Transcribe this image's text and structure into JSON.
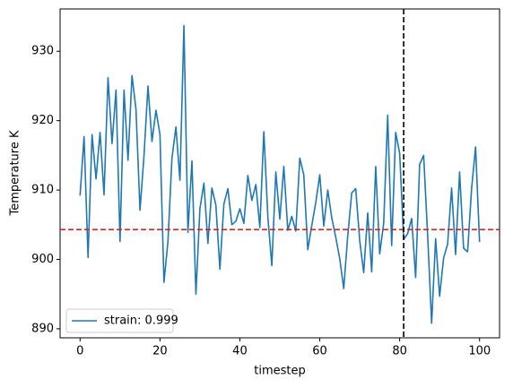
{
  "chart_data": {
    "type": "line",
    "x_label": "timestep",
    "y_label": "Temperature K",
    "x": [
      0,
      1,
      2,
      3,
      4,
      5,
      6,
      7,
      8,
      9,
      10,
      11,
      12,
      13,
      14,
      15,
      16,
      17,
      18,
      19,
      20,
      21,
      22,
      23,
      24,
      25,
      26,
      27,
      28,
      29,
      30,
      31,
      32,
      33,
      34,
      35,
      36,
      37,
      38,
      39,
      40,
      41,
      42,
      43,
      44,
      45,
      46,
      47,
      48,
      49,
      50,
      51,
      52,
      53,
      54,
      55,
      56,
      57,
      58,
      59,
      60,
      61,
      62,
      63,
      64,
      65,
      66,
      67,
      68,
      69,
      70,
      71,
      72,
      73,
      74,
      75,
      76,
      77,
      78,
      79,
      80,
      81,
      82,
      83,
      84,
      85,
      86,
      87,
      88,
      89,
      90,
      91,
      92,
      93,
      94,
      95,
      96,
      97,
      98,
      99,
      100
    ],
    "series": [
      {
        "name": "strain: 0.999",
        "color": "#1f77b4",
        "values": [
          909.2,
          917.7,
          900.3,
          918,
          911.6,
          918.3,
          909.3,
          926.2,
          916.7,
          924.4,
          902.6,
          924.4,
          914.3,
          926.5,
          921.6,
          907.1,
          914.9,
          925,
          917,
          921.5,
          918,
          896.7,
          902.6,
          914.6,
          919.1,
          911.4,
          933.7,
          903.9,
          914.2,
          895,
          907.3,
          911,
          902.3,
          910.3,
          907.8,
          898.6,
          908,
          910.2,
          905,
          905.5,
          907.3,
          905.2,
          912.1,
          908.5,
          910.8,
          904.6,
          918.4,
          906.2,
          899.1,
          912.6,
          905.8,
          913.4,
          904.2,
          906.2,
          904.1,
          914.6,
          912.2,
          901.4,
          904.9,
          908.2,
          912.2,
          904.8,
          910,
          906,
          903.2,
          900.1,
          895.8,
          903.4,
          909.6,
          910.2,
          902.7,
          898.1,
          906.7,
          898.2,
          913.4,
          900.8,
          905.2,
          920.8,
          902,
          918.3,
          915.3,
          902.9,
          903.7,
          905.9,
          897.4,
          913.7,
          915,
          903.5,
          890.8,
          903,
          894.7,
          900.2,
          902.2,
          910.3,
          900.7,
          912.6,
          901.6,
          901.1,
          910.2,
          916.2,
          902.5
        ]
      }
    ],
    "reference_lines": [
      {
        "axis": "y",
        "value": 904.3,
        "color": "#d62728"
      },
      {
        "axis": "x",
        "value": 81,
        "color": "#000000"
      }
    ],
    "xlim": [
      -5,
      105
    ],
    "ylim": [
      888.7,
      936.1
    ],
    "xticks": [
      0,
      20,
      40,
      60,
      80,
      100
    ],
    "yticks": [
      890,
      900,
      910,
      920,
      930
    ],
    "legend": "lower left"
  }
}
